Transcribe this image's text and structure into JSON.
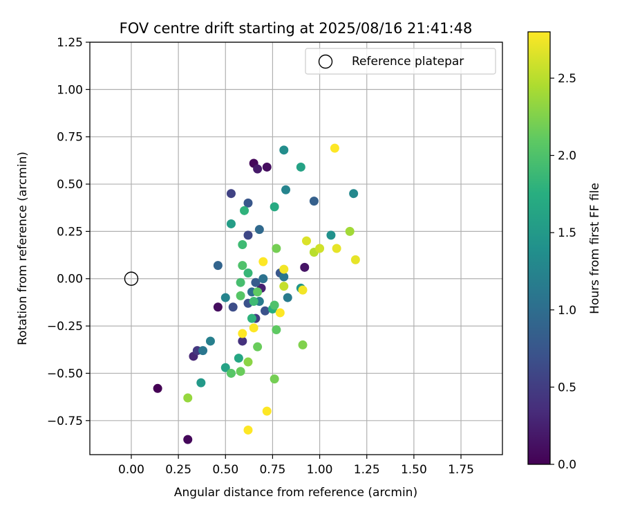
{
  "chart_data": {
    "type": "scatter",
    "title": "FOV centre drift starting at 2025/08/16 21:41:48",
    "xlabel": "Angular distance from reference (arcmin)",
    "ylabel": "Rotation from reference (arcmin)",
    "xlim": [
      -0.22,
      1.97
    ],
    "ylim": [
      -0.93,
      1.25
    ],
    "xticks": [
      "0.00",
      "0.25",
      "0.50",
      "0.75",
      "1.00",
      "1.25",
      "1.50",
      "1.75"
    ],
    "yticks": [
      "−0.75",
      "−0.50",
      "−0.25",
      "0.00",
      "0.25",
      "0.50",
      "0.75",
      "1.00",
      "1.25"
    ],
    "grid": true,
    "legend": {
      "position": "top-right",
      "entries": [
        "Reference platepar"
      ]
    },
    "colorbar": {
      "label": "Hours from first FF file",
      "range": [
        0.0,
        2.8
      ],
      "ticks": [
        "0.0",
        "0.5",
        "1.0",
        "1.5",
        "2.0",
        "2.5"
      ],
      "colormap": "viridis"
    },
    "reference_point": {
      "x": 0.0,
      "y": 0.0
    },
    "points": [
      {
        "x": 0.14,
        "y": -0.58,
        "c": 0.0
      },
      {
        "x": 0.3,
        "y": -0.85,
        "c": 0.05
      },
      {
        "x": 0.65,
        "y": 0.61,
        "c": 0.05
      },
      {
        "x": 0.72,
        "y": 0.59,
        "c": 0.1
      },
      {
        "x": 0.46,
        "y": -0.15,
        "c": 0.1
      },
      {
        "x": 0.92,
        "y": 0.06,
        "c": 0.15
      },
      {
        "x": 0.67,
        "y": 0.58,
        "c": 0.2
      },
      {
        "x": 0.69,
        "y": -0.05,
        "c": 0.25
      },
      {
        "x": 0.33,
        "y": -0.41,
        "c": 0.3
      },
      {
        "x": 0.59,
        "y": -0.33,
        "c": 0.4
      },
      {
        "x": 0.35,
        "y": -0.38,
        "c": 0.45
      },
      {
        "x": 0.66,
        "y": -0.21,
        "c": 0.5
      },
      {
        "x": 0.53,
        "y": 0.45,
        "c": 0.55
      },
      {
        "x": 0.62,
        "y": 0.23,
        "c": 0.6
      },
      {
        "x": 0.54,
        "y": -0.15,
        "c": 0.65
      },
      {
        "x": 0.62,
        "y": -0.13,
        "c": 0.7
      },
      {
        "x": 0.71,
        "y": -0.17,
        "c": 0.7
      },
      {
        "x": 0.62,
        "y": 0.4,
        "c": 0.75
      },
      {
        "x": 0.79,
        "y": 0.03,
        "c": 0.75
      },
      {
        "x": 0.66,
        "y": -0.02,
        "c": 0.8
      },
      {
        "x": 0.97,
        "y": 0.41,
        "c": 0.85
      },
      {
        "x": 0.46,
        "y": 0.07,
        "c": 0.9
      },
      {
        "x": 0.68,
        "y": 0.26,
        "c": 0.95
      },
      {
        "x": 0.64,
        "y": -0.07,
        "c": 1.0
      },
      {
        "x": 0.7,
        "y": 0.0,
        "c": 1.05
      },
      {
        "x": 0.38,
        "y": -0.38,
        "c": 1.1
      },
      {
        "x": 0.81,
        "y": 0.01,
        "c": 1.1
      },
      {
        "x": 0.68,
        "y": -0.12,
        "c": 1.15
      },
      {
        "x": 0.83,
        "y": -0.1,
        "c": 1.15
      },
      {
        "x": 0.42,
        "y": -0.33,
        "c": 1.2
      },
      {
        "x": 0.82,
        "y": 0.47,
        "c": 1.25
      },
      {
        "x": 0.5,
        "y": -0.1,
        "c": 1.25
      },
      {
        "x": 1.18,
        "y": 0.45,
        "c": 1.3
      },
      {
        "x": 0.81,
        "y": 0.68,
        "c": 1.35
      },
      {
        "x": 1.06,
        "y": 0.23,
        "c": 1.4
      },
      {
        "x": 0.9,
        "y": -0.05,
        "c": 1.45
      },
      {
        "x": 0.37,
        "y": -0.55,
        "c": 1.5
      },
      {
        "x": 0.53,
        "y": 0.29,
        "c": 1.55
      },
      {
        "x": 0.9,
        "y": 0.59,
        "c": 1.6
      },
      {
        "x": 0.5,
        "y": -0.47,
        "c": 1.6
      },
      {
        "x": 0.57,
        "y": -0.42,
        "c": 1.65
      },
      {
        "x": 0.76,
        "y": 0.38,
        "c": 1.7
      },
      {
        "x": 0.75,
        "y": -0.16,
        "c": 1.75
      },
      {
        "x": 0.6,
        "y": 0.36,
        "c": 1.8
      },
      {
        "x": 0.64,
        "y": -0.21,
        "c": 1.8
      },
      {
        "x": 0.62,
        "y": 0.03,
        "c": 1.85
      },
      {
        "x": 0.59,
        "y": 0.18,
        "c": 1.9
      },
      {
        "x": 0.65,
        "y": -0.12,
        "c": 1.9
      },
      {
        "x": 0.58,
        "y": -0.02,
        "c": 1.95
      },
      {
        "x": 0.59,
        "y": 0.07,
        "c": 2.0
      },
      {
        "x": 0.76,
        "y": -0.14,
        "c": 2.0
      },
      {
        "x": 0.53,
        "y": -0.5,
        "c": 2.05
      },
      {
        "x": 0.58,
        "y": -0.09,
        "c": 2.05
      },
      {
        "x": 0.77,
        "y": -0.27,
        "c": 2.1
      },
      {
        "x": 0.67,
        "y": -0.07,
        "c": 2.1
      },
      {
        "x": 0.58,
        "y": -0.49,
        "c": 2.15
      },
      {
        "x": 0.67,
        "y": -0.36,
        "c": 2.15
      },
      {
        "x": 0.77,
        "y": 0.16,
        "c": 2.2
      },
      {
        "x": 0.76,
        "y": -0.53,
        "c": 2.2
      },
      {
        "x": 0.91,
        "y": -0.35,
        "c": 2.25
      },
      {
        "x": 0.62,
        "y": -0.44,
        "c": 2.3
      },
      {
        "x": 0.3,
        "y": -0.63,
        "c": 2.35
      },
      {
        "x": 1.16,
        "y": 0.25,
        "c": 2.4
      },
      {
        "x": 0.97,
        "y": 0.14,
        "c": 2.5
      },
      {
        "x": 0.81,
        "y": -0.04,
        "c": 2.55
      },
      {
        "x": 1.0,
        "y": 0.16,
        "c": 2.6
      },
      {
        "x": 0.93,
        "y": 0.2,
        "c": 2.65
      },
      {
        "x": 1.09,
        "y": 0.16,
        "c": 2.7
      },
      {
        "x": 1.19,
        "y": 0.1,
        "c": 2.7
      },
      {
        "x": 0.91,
        "y": -0.06,
        "c": 2.75
      },
      {
        "x": 0.81,
        "y": 0.05,
        "c": 2.75
      },
      {
        "x": 0.7,
        "y": 0.09,
        "c": 2.8
      },
      {
        "x": 1.08,
        "y": 0.69,
        "c": 2.8
      },
      {
        "x": 0.65,
        "y": -0.26,
        "c": 2.8
      },
      {
        "x": 0.59,
        "y": -0.29,
        "c": 2.8
      },
      {
        "x": 0.79,
        "y": -0.18,
        "c": 2.8
      },
      {
        "x": 0.72,
        "y": -0.7,
        "c": 2.8
      },
      {
        "x": 0.62,
        "y": -0.8,
        "c": 2.8
      }
    ]
  }
}
